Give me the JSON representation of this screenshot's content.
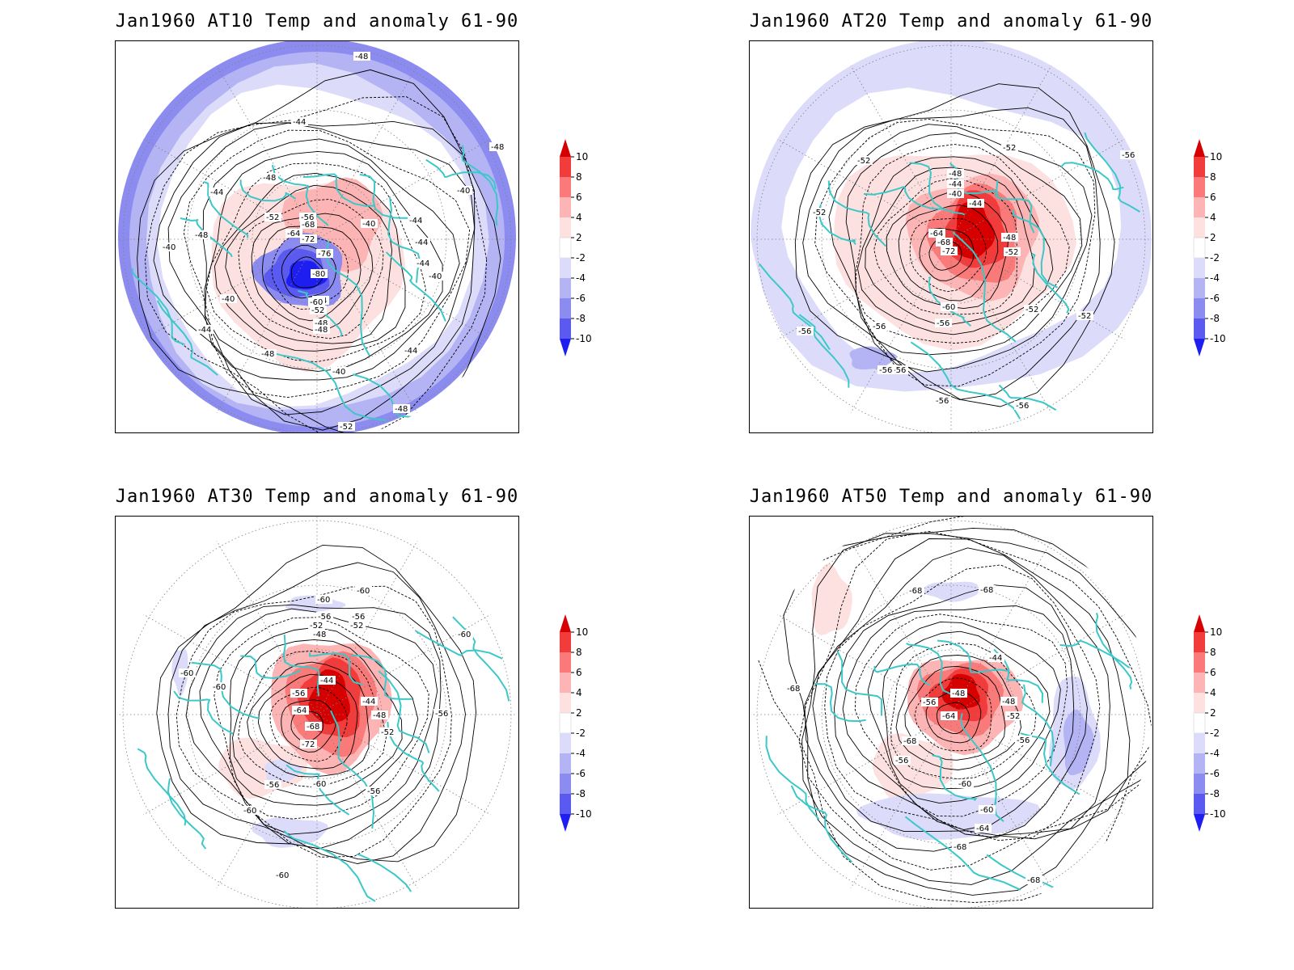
{
  "figure": {
    "panels": [
      {
        "id": "at10",
        "title": "Jan1960 AT10 Temp and anomaly 61-90",
        "contour_labels": [
          "-48",
          "-44",
          "-48",
          "-52",
          "-44",
          "-48",
          "-40",
          "-44",
          "-48",
          "-64",
          "-56",
          "-68",
          "-72",
          "-76",
          "-80",
          "-40",
          "-44",
          "-48",
          "-44",
          "-52",
          "-60",
          "-48",
          "-40",
          "-44",
          "-40",
          "-44",
          "-40",
          "-48",
          "-52",
          "-48",
          "-44",
          "-40"
        ]
      },
      {
        "id": "at20",
        "title": "Jan1960 AT20 Temp and anomaly 61-90",
        "contour_labels": [
          "-52",
          "-48",
          "-44",
          "-40",
          "-44",
          "-48",
          "-52",
          "-56",
          "-52",
          "-56",
          "-64",
          "-68",
          "-72",
          "-60",
          "-56",
          "-52",
          "-52",
          "-56",
          "-56",
          "-56",
          "-56",
          "-52",
          "-56"
        ]
      },
      {
        "id": "at30",
        "title": "Jan1960 AT30 Temp and anomaly 61-90",
        "contour_labels": [
          "-60",
          "-60",
          "-56",
          "-56",
          "-52",
          "-52",
          "-48",
          "-44",
          "-44",
          "-48",
          "-52",
          "-56",
          "-64",
          "-68",
          "-72",
          "-60",
          "-56",
          "-56",
          "-60",
          "-60",
          "-60",
          "-56",
          "-60",
          "-60"
        ]
      },
      {
        "id": "at50",
        "title": "Jan1960 AT50 Temp and anomaly 61-90",
        "contour_labels": [
          "-68",
          "-68",
          "-44",
          "-48",
          "-56",
          "-48",
          "-64",
          "-52",
          "-68",
          "-56",
          "-56",
          "-60",
          "-60",
          "-64",
          "-68",
          "-68",
          "-68"
        ]
      }
    ],
    "colorbar": {
      "ticks": [
        "10",
        "8",
        "6",
        "4",
        "2",
        "-2",
        "-4",
        "-6",
        "-8",
        "-10"
      ],
      "colors": [
        "#d60000",
        "#f23c3c",
        "#fa7a7a",
        "#fcb4b4",
        "#fde1e1",
        "#ffffff",
        "#dcdcfa",
        "#b4b4f5",
        "#8c8cf0",
        "#5a5af0",
        "#1e1ef0"
      ]
    },
    "styles": {
      "coast_color": "#3cc8c8",
      "contour_color": "#000000",
      "ocean_bg": "#ffffff"
    }
  }
}
